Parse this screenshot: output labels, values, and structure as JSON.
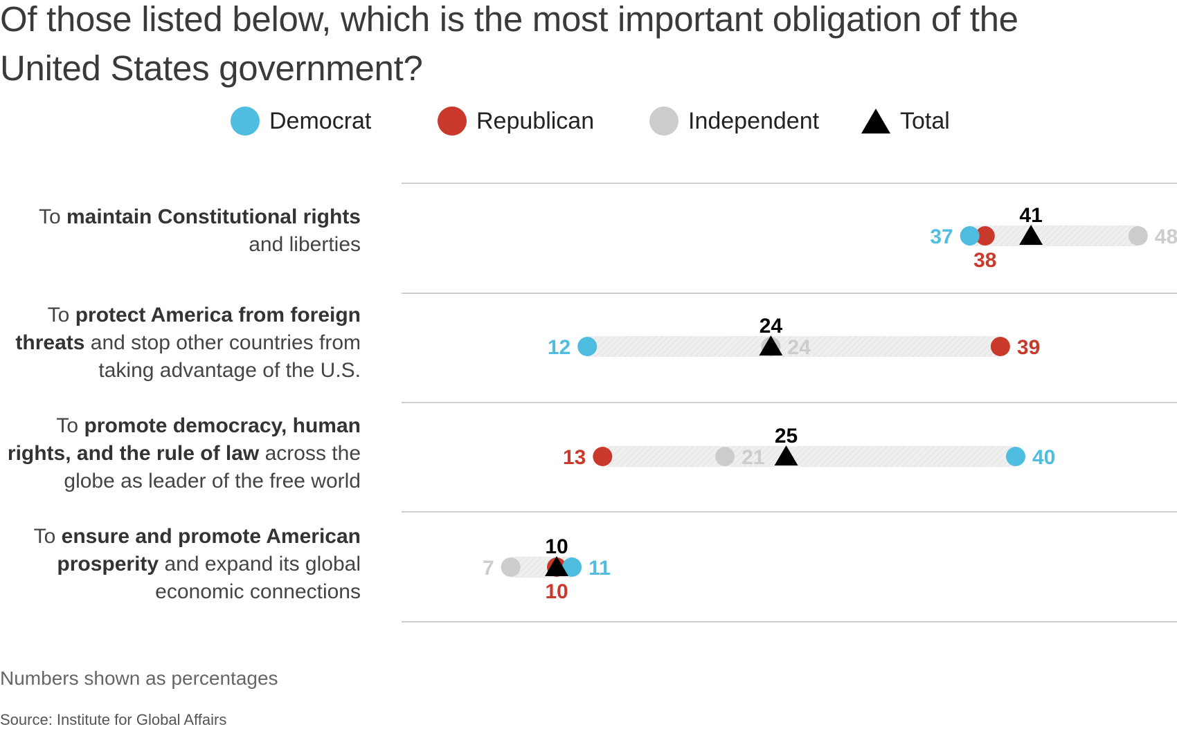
{
  "title": "Of those listed below, which is the most important obligation of the United States government?",
  "note": "Numbers shown as percentages",
  "source": "Source: Institute for Global Affairs",
  "colors": {
    "democrat": "#4fbde0",
    "republican": "#c9392c",
    "independent": "#cccccc",
    "total": "#000000",
    "range_band": "#ececec",
    "rule": "#bdbdbd"
  },
  "legend": [
    {
      "key": "democrat",
      "label": "Democrat"
    },
    {
      "key": "republican",
      "label": "Republican"
    },
    {
      "key": "independent",
      "label": "Independent"
    },
    {
      "key": "total",
      "label": "Total"
    }
  ],
  "rows": [
    {
      "label_parts": [
        {
          "text": "To ",
          "bold": false
        },
        {
          "text": "maintain Constitutional rights",
          "bold": true
        },
        {
          "text": " and liberties",
          "bold": false
        }
      ]
    },
    {
      "label_parts": [
        {
          "text": "To ",
          "bold": false
        },
        {
          "text": "protect America from foreign threats",
          "bold": true
        },
        {
          "text": " and stop other countries from taking advantage of the U.S.",
          "bold": false
        }
      ]
    },
    {
      "label_parts": [
        {
          "text": "To ",
          "bold": false
        },
        {
          "text": "promote democracy, human rights, and the rule of law",
          "bold": true
        },
        {
          "text": " across the globe as leader of the free world",
          "bold": false
        }
      ]
    },
    {
      "label_parts": [
        {
          "text": "To ",
          "bold": false
        },
        {
          "text": "ensure and promote American prosperity",
          "bold": true
        },
        {
          "text": " and expand its global economic connections",
          "bold": false
        }
      ]
    }
  ],
  "chart_data": {
    "type": "dot-plot",
    "title": "Of those listed below, which is the most important obligation of the United States government?",
    "unit": "percent",
    "categories": [
      "To maintain Constitutional rights and liberties",
      "To protect America from foreign threats and stop other countries from taking advantage of the U.S.",
      "To promote democracy, human rights, and the rule of law across the globe as leader of the free world",
      "To ensure and promote American prosperity and expand its global economic connections"
    ],
    "series": [
      {
        "name": "Democrat",
        "values": [
          37,
          12,
          40,
          11
        ]
      },
      {
        "name": "Republican",
        "values": [
          38,
          39,
          13,
          10
        ]
      },
      {
        "name": "Independent",
        "values": [
          48,
          24,
          21,
          7
        ]
      },
      {
        "name": "Total",
        "values": [
          41,
          24,
          25,
          10
        ]
      }
    ],
    "xlim": [
      0,
      52
    ],
    "grid": false,
    "legend_position": "top"
  }
}
